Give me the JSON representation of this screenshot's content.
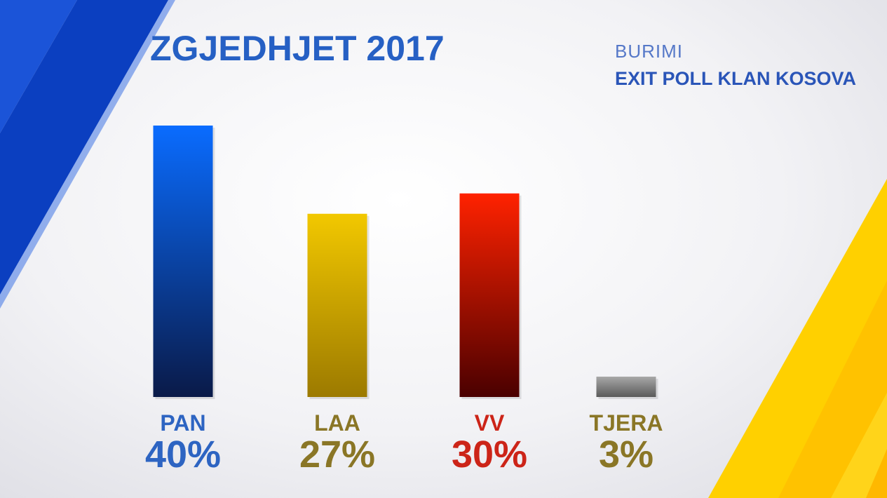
{
  "header": {
    "title": "ZGJEDHJET 2017",
    "source_label": "BURIMI",
    "source_name": "EXIT POLL KLAN KOSOVA"
  },
  "chart_data": {
    "type": "bar",
    "title": "ZGJEDHJET 2017",
    "categories": [
      "PAN",
      "LAA",
      "VV",
      "TJERA"
    ],
    "values": [
      40,
      27,
      30,
      3
    ],
    "value_labels": [
      "40%",
      "27%",
      "30%",
      "3%"
    ],
    "unit": "%",
    "ylim": [
      0,
      40
    ],
    "grid": false,
    "legend": "none",
    "colors": {
      "PAN": {
        "top": "#0a6cff",
        "bottom": "#0a1a48",
        "label": "#2d64c2"
      },
      "LAA": {
        "top": "#f2c800",
        "bottom": "#9c7a00",
        "label": "#8a7626"
      },
      "VV": {
        "top": "#ff2200",
        "bottom": "#4a0000",
        "label": "#cc2418"
      },
      "TJERA": {
        "top": "#a8a8a8",
        "bottom": "#5a5a5a",
        "label": "#8a7626"
      }
    }
  },
  "decor": {
    "blue_accent": "#0d4fd6",
    "yellow_accent": "#ffcc00"
  }
}
